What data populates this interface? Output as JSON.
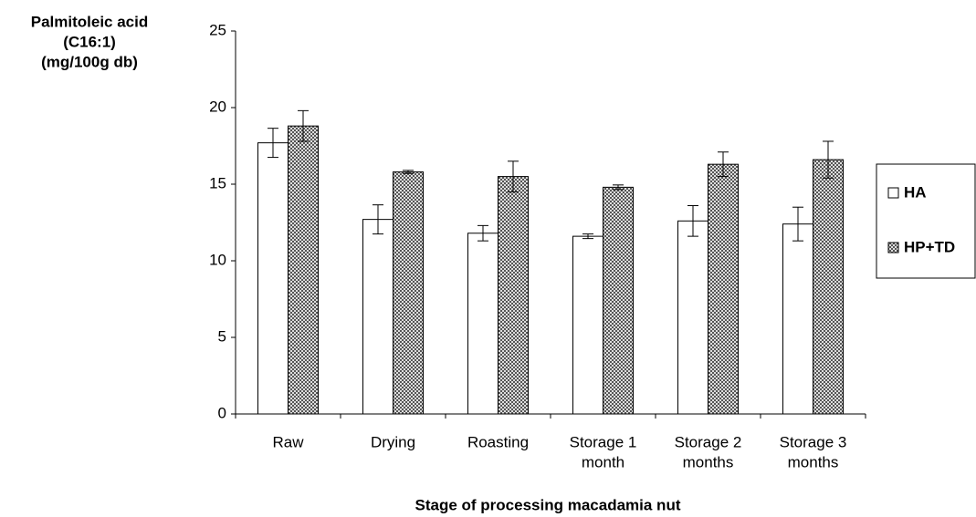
{
  "chart_data": {
    "type": "bar",
    "y_label": [
      "Palmitoleic acid",
      "(C16:1)",
      "(mg/100g db)"
    ],
    "x_label": "Stage of processing macadamia nut",
    "categories": [
      [
        "Raw"
      ],
      [
        "Drying"
      ],
      [
        "Roasting"
      ],
      [
        "Storage 1",
        "month"
      ],
      [
        "Storage 2",
        "months"
      ],
      [
        "Storage 3",
        "months"
      ]
    ],
    "series": [
      {
        "name": "HA",
        "color": "#ffffff",
        "pattern": false,
        "values": [
          17.7,
          12.7,
          11.8,
          11.6,
          12.6,
          12.4
        ],
        "errors": [
          0.95,
          0.95,
          0.5,
          0.15,
          1.0,
          1.1
        ]
      },
      {
        "name": "HP+TD",
        "color": "#555555",
        "pattern": true,
        "values": [
          18.8,
          15.8,
          15.5,
          14.8,
          16.3,
          16.6
        ],
        "errors": [
          1.0,
          0.1,
          1.0,
          0.15,
          0.8,
          1.2
        ]
      }
    ],
    "ylim": [
      0,
      25
    ],
    "yticks": [
      0,
      5,
      10,
      15,
      20,
      25
    ],
    "grid": false,
    "legend": "right"
  }
}
